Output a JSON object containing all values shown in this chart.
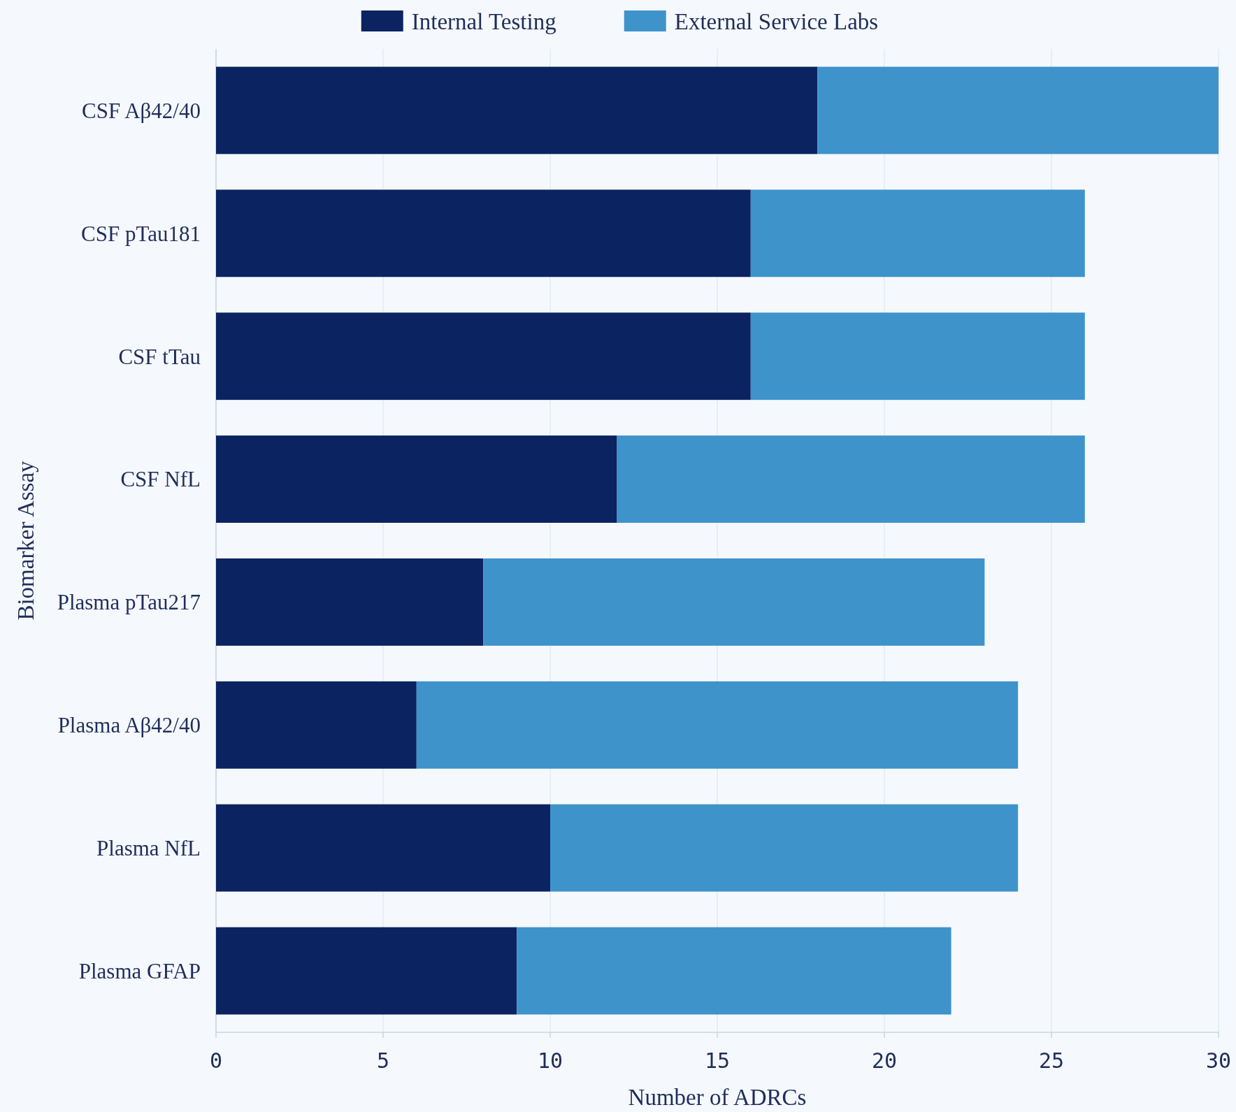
{
  "chart_data": {
    "type": "bar",
    "orientation": "horizontal",
    "stacked": true,
    "xlabel": "Number of ADRCs",
    "ylabel": "Biomarker Assay",
    "categories": [
      "CSF Aβ42/40",
      "CSF pTau181",
      "CSF tTau",
      "CSF NfL",
      "Plasma pTau217",
      "Plasma Aβ42/40",
      "Plasma NfL",
      "Plasma GFAP"
    ],
    "series": [
      {
        "name": "Internal Testing",
        "color": "#0b2361",
        "values": [
          18,
          16,
          16,
          12,
          8,
          6,
          10,
          9
        ]
      },
      {
        "name": "External Service Labs",
        "color": "#3e93cb",
        "values": [
          12,
          10,
          10,
          14,
          15,
          18,
          14,
          13
        ]
      }
    ],
    "xlim": [
      0,
      30
    ],
    "xticks": [
      0,
      5,
      10,
      15,
      20,
      25,
      30
    ],
    "grid": "x",
    "legend": "top"
  }
}
